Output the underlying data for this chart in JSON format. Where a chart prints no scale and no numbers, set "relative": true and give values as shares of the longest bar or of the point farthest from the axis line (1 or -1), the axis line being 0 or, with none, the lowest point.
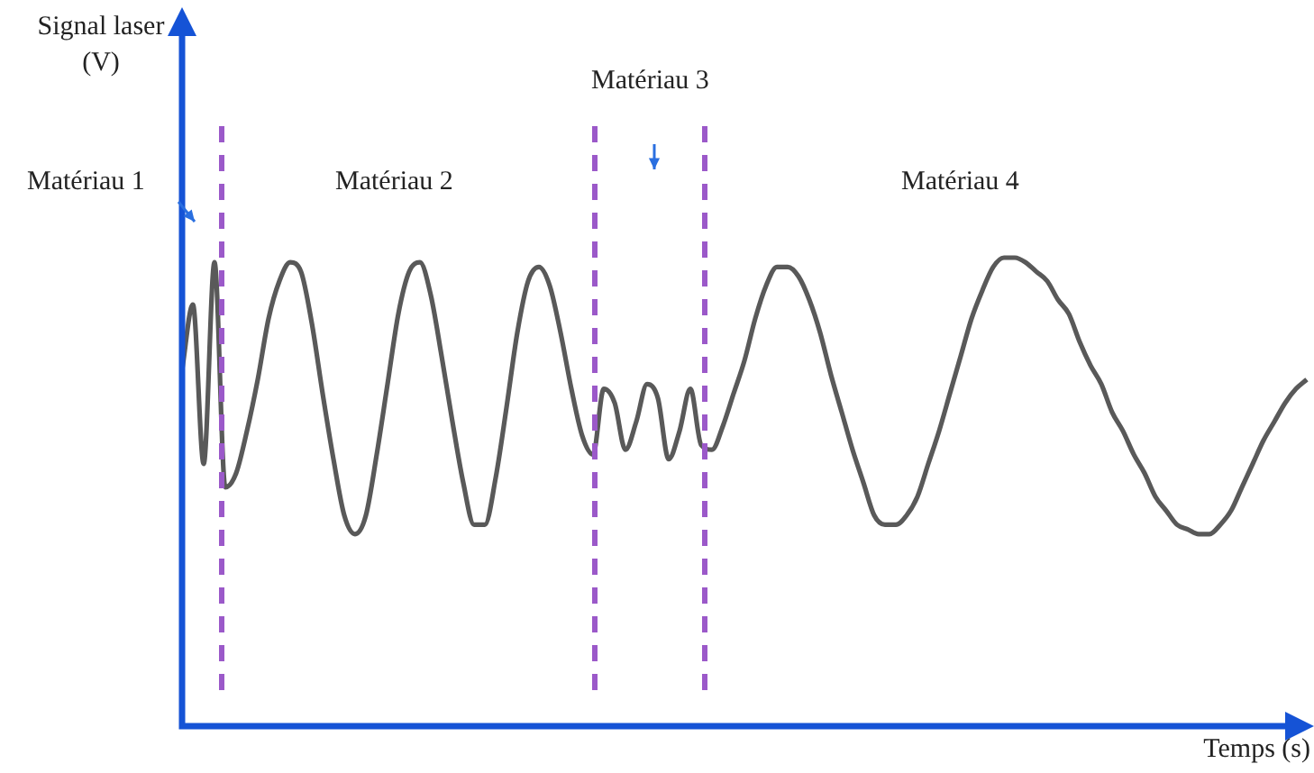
{
  "chart_data": {
    "type": "line",
    "relative": true,
    "xlabel": "Temps (s)",
    "categories": [
      null,
      null,
      null,
      null,
      null,
      null,
      null,
      null,
      null,
      null,
      null,
      null,
      null,
      null,
      null,
      null,
      null,
      null,
      null,
      null,
      null,
      null,
      null,
      null,
      null,
      null,
      null,
      null,
      null,
      null,
      null,
      null,
      null,
      null,
      null,
      null,
      null,
      null,
      null,
      null,
      null,
      null,
      null,
      null,
      null,
      null,
      null,
      null,
      null,
      null,
      null,
      null,
      null,
      null,
      null,
      null,
      null,
      null,
      null,
      null,
      null,
      null,
      null,
      null,
      null,
      null,
      null,
      null,
      null,
      null,
      null,
      null,
      null,
      null,
      null,
      null,
      null,
      null,
      null,
      null,
      null,
      null,
      null,
      null,
      null,
      null,
      null,
      null,
      null,
      null,
      null,
      null,
      null,
      null,
      null,
      null,
      null,
      null,
      null,
      null,
      null,
      null,
      null,
      null,
      null
    ],
    "series": [
      {
        "color": "#595959",
        "values": [
          0.76,
          0.9,
          0.56,
          0.99,
          0.51,
          0.54,
          0.63,
          0.74,
          0.87,
          0.95,
          0.99,
          0.97,
          0.86,
          0.71,
          0.57,
          0.45,
          0.41,
          0.45,
          0.58,
          0.73,
          0.88,
          0.97,
          0.99,
          0.92,
          0.79,
          0.65,
          0.52,
          0.43,
          0.43,
          0.53,
          0.68,
          0.84,
          0.95,
          0.98,
          0.94,
          0.84,
          0.72,
          0.62,
          0.58,
          0.72,
          0.69,
          0.59,
          0.65,
          0.73,
          0.7,
          0.57,
          0.63,
          0.72,
          0.6,
          0.59,
          0.64,
          0.71,
          0.78,
          0.87,
          0.94,
          0.98,
          0.98,
          0.96,
          0.91,
          0.84,
          0.75,
          0.67,
          0.59,
          0.52,
          0.45,
          0.43,
          0.43,
          0.45,
          0.49,
          0.56,
          0.63,
          0.71,
          0.79,
          0.87,
          0.93,
          0.98,
          1,
          1,
          0.99,
          0.97,
          0.95,
          0.91,
          0.88,
          0.82,
          0.77,
          0.73,
          0.67,
          0.63,
          0.58,
          0.54,
          0.49,
          0.46,
          0.43,
          0.42,
          0.41,
          0.41,
          0.43,
          0.46,
          0.51,
          0.56,
          0.61,
          0.65,
          0.69,
          0.72,
          0.74
        ]
      }
    ],
    "annotations": [
      "Signal laser (V)",
      "Matériau 1",
      "Matériau 2",
      "Matériau 3",
      "Matériau 4"
    ]
  }
}
